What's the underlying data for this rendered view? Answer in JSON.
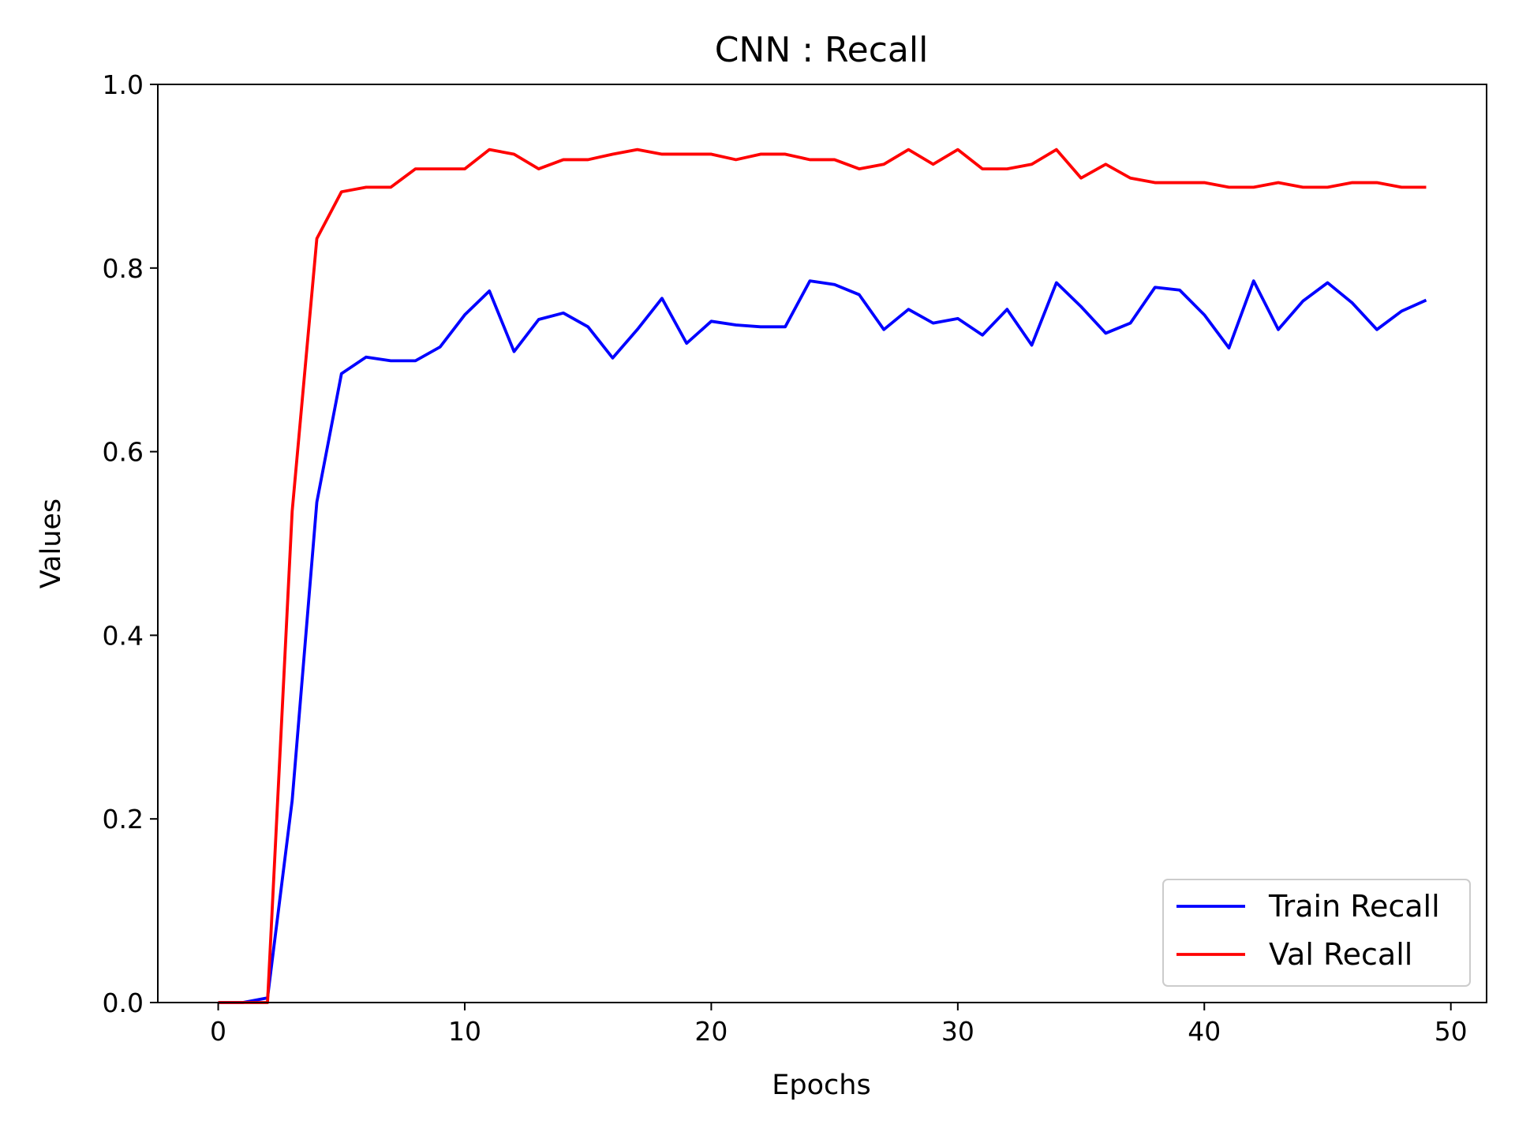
{
  "chart_data": {
    "type": "line",
    "title": "CNN : Recall",
    "xlabel": "Epochs",
    "ylabel": "Values",
    "xlim": [
      -2.45,
      51.45
    ],
    "ylim": [
      0,
      1.0
    ],
    "xticks": [
      0,
      10,
      20,
      30,
      40,
      50
    ],
    "yticks": [
      0.0,
      0.2,
      0.4,
      0.6,
      0.8,
      1.0
    ],
    "xtick_labels": [
      "0",
      "10",
      "20",
      "30",
      "40",
      "50"
    ],
    "ytick_labels": [
      "0.0",
      "0.2",
      "0.4",
      "0.6",
      "0.8",
      "1.0"
    ],
    "grid": false,
    "legend_position": "lower-right",
    "x": [
      0,
      1,
      2,
      3,
      4,
      5,
      6,
      7,
      8,
      9,
      10,
      11,
      12,
      13,
      14,
      15,
      16,
      17,
      18,
      19,
      20,
      21,
      22,
      23,
      24,
      25,
      26,
      27,
      28,
      29,
      30,
      31,
      32,
      33,
      34,
      35,
      36,
      37,
      38,
      39,
      40,
      41,
      42,
      43,
      44,
      45,
      46,
      47,
      48,
      49
    ],
    "series": [
      {
        "name": "Train Recall",
        "color": "#0000ff",
        "values": [
          0.0,
          0.0,
          0.005,
          0.22,
          0.545,
          0.685,
          0.703,
          0.699,
          0.699,
          0.714,
          0.749,
          0.775,
          0.709,
          0.744,
          0.751,
          0.736,
          0.702,
          0.733,
          0.767,
          0.718,
          0.742,
          0.738,
          0.736,
          0.736,
          0.786,
          0.782,
          0.771,
          0.733,
          0.755,
          0.74,
          0.745,
          0.727,
          0.755,
          0.716,
          0.784,
          0.758,
          0.729,
          0.74,
          0.779,
          0.776,
          0.749,
          0.713,
          0.786,
          0.733,
          0.764,
          0.784,
          0.762,
          0.733,
          0.753,
          0.765
        ]
      },
      {
        "name": "Val Recall",
        "color": "#ff0000",
        "values": [
          0.0,
          0.0,
          0.0,
          0.535,
          0.832,
          0.883,
          0.888,
          0.888,
          0.908,
          0.908,
          0.908,
          0.929,
          0.924,
          0.908,
          0.918,
          0.918,
          0.924,
          0.929,
          0.924,
          0.924,
          0.924,
          0.918,
          0.924,
          0.924,
          0.918,
          0.918,
          0.908,
          0.913,
          0.929,
          0.913,
          0.929,
          0.908,
          0.908,
          0.913,
          0.929,
          0.898,
          0.913,
          0.898,
          0.893,
          0.893,
          0.893,
          0.888,
          0.888,
          0.893,
          0.888,
          0.888,
          0.893,
          0.893,
          0.888,
          0.888
        ]
      }
    ]
  }
}
